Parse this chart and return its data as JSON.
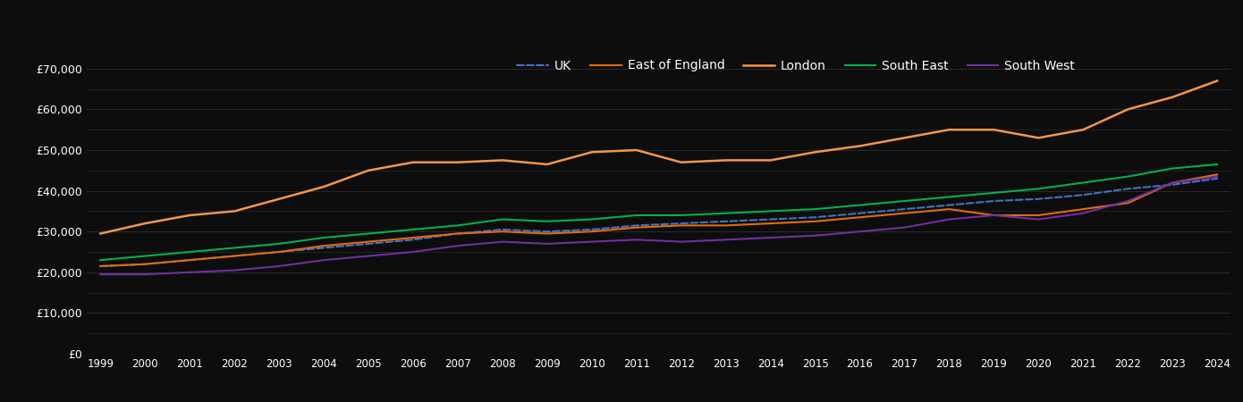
{
  "background_color": "#0d0d0d",
  "text_color": "#ffffff",
  "grid_color": "#2a2a2a",
  "years": [
    1999,
    2000,
    2001,
    2002,
    2003,
    2004,
    2005,
    2006,
    2007,
    2008,
    2009,
    2010,
    2011,
    2012,
    2013,
    2014,
    2015,
    2016,
    2017,
    2018,
    2019,
    2020,
    2021,
    2022,
    2023,
    2024
  ],
  "series": {
    "UK": {
      "color": "#4472c4",
      "linestyle": "dashed",
      "linewidth": 1.5,
      "values": [
        21500,
        22000,
        23000,
        24000,
        25000,
        26000,
        27000,
        28000,
        29500,
        30500,
        30000,
        30500,
        31500,
        32000,
        32500,
        33000,
        33500,
        34500,
        35500,
        36500,
        37500,
        38000,
        39000,
        40500,
        41500,
        43000
      ]
    },
    "East of England": {
      "color": "#e36c09",
      "linestyle": "solid",
      "linewidth": 1.5,
      "values": [
        21500,
        22000,
        23000,
        24000,
        25000,
        26500,
        27500,
        28500,
        29500,
        30000,
        29500,
        30000,
        31000,
        31500,
        31500,
        32000,
        32500,
        33500,
        34500,
        35500,
        34000,
        34000,
        35500,
        37000,
        42000,
        44000
      ]
    },
    "London": {
      "color": "#f79646",
      "linestyle": "solid",
      "linewidth": 1.8,
      "values": [
        29500,
        32000,
        34000,
        35000,
        38000,
        41000,
        45000,
        47000,
        47000,
        47500,
        46500,
        49500,
        50000,
        47000,
        47500,
        47500,
        49500,
        51000,
        53000,
        55000,
        55000,
        53000,
        55000,
        60000,
        63000,
        67000
      ]
    },
    "South East": {
      "color": "#00b050",
      "linestyle": "solid",
      "linewidth": 1.5,
      "values": [
        23000,
        24000,
        25000,
        26000,
        27000,
        28500,
        29500,
        30500,
        31500,
        33000,
        32500,
        33000,
        34000,
        34000,
        34500,
        35000,
        35500,
        36500,
        37500,
        38500,
        39500,
        40500,
        42000,
        43500,
        45500,
        46500
      ]
    },
    "South West": {
      "color": "#7030a0",
      "linestyle": "solid",
      "linewidth": 1.5,
      "values": [
        19500,
        19500,
        20000,
        20500,
        21500,
        23000,
        24000,
        25000,
        26500,
        27500,
        27000,
        27500,
        28000,
        27500,
        28000,
        28500,
        29000,
        30000,
        31000,
        33000,
        34000,
        33000,
        34500,
        37500,
        42000,
        43500
      ]
    }
  },
  "ylim": [
    0,
    75000
  ],
  "yticks": [
    0,
    10000,
    20000,
    30000,
    40000,
    50000,
    60000,
    70000
  ],
  "minor_yticks": [
    5000,
    15000,
    25000,
    35000,
    45000,
    55000,
    65000
  ],
  "ytick_labels": [
    "£0",
    "£10,000",
    "£20,000",
    "£30,000",
    "£40,000",
    "£50,000",
    "£60,000",
    "£70,000"
  ]
}
